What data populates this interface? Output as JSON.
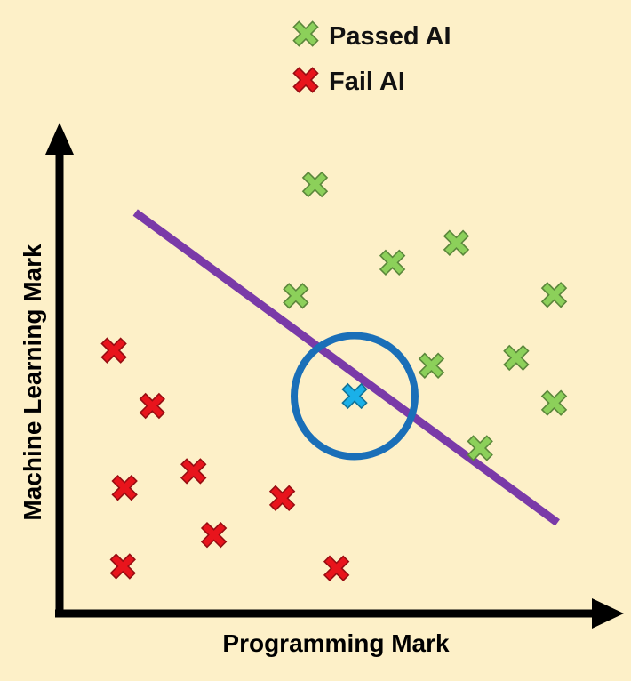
{
  "chart_data": {
    "type": "scatter",
    "title": "",
    "xlabel": "Programming Mark",
    "ylabel": "Machine Learning Mark",
    "xlim": [
      0,
      100
    ],
    "ylim": [
      0,
      100
    ],
    "grid": false,
    "legend_position": "top-center",
    "series": [
      {
        "name": "Passed AI",
        "color": "#8cd05a",
        "marker": "x",
        "points": [
          {
            "x": 45.2,
            "y": 87.4
          },
          {
            "x": 58.9,
            "y": 71.5
          },
          {
            "x": 70.2,
            "y": 75.5
          },
          {
            "x": 41.8,
            "y": 64.7
          },
          {
            "x": 87.5,
            "y": 64.9
          },
          {
            "x": 65.8,
            "y": 50.5
          },
          {
            "x": 80.8,
            "y": 52.1
          },
          {
            "x": 87.5,
            "y": 42.9
          },
          {
            "x": 74.4,
            "y": 33.7
          }
        ]
      },
      {
        "name": "Fail AI",
        "color": "#e8141c",
        "marker": "x",
        "points": [
          {
            "x": 9.6,
            "y": 53.6
          },
          {
            "x": 16.4,
            "y": 42.3
          },
          {
            "x": 23.7,
            "y": 29.0
          },
          {
            "x": 11.5,
            "y": 25.6
          },
          {
            "x": 39.4,
            "y": 23.5
          },
          {
            "x": 27.3,
            "y": 16.0
          },
          {
            "x": 11.2,
            "y": 9.6
          },
          {
            "x": 49.0,
            "y": 9.2
          }
        ]
      }
    ],
    "query_point": {
      "x": 52.2,
      "y": 44.3,
      "color": "#1ab0e8"
    },
    "highlight_circle": {
      "cx": 52.2,
      "cy": 44.3,
      "color": "#1a6fb8"
    },
    "boundary_line": {
      "x": [
        13.4,
        88.1
      ],
      "y": [
        81.7,
        18.5
      ],
      "color": "#7a3aa8"
    },
    "legend": [
      {
        "label": "Passed AI",
        "color": "#8cd05a"
      },
      {
        "label": "Fail AI",
        "color": "#e8141c"
      }
    ]
  }
}
